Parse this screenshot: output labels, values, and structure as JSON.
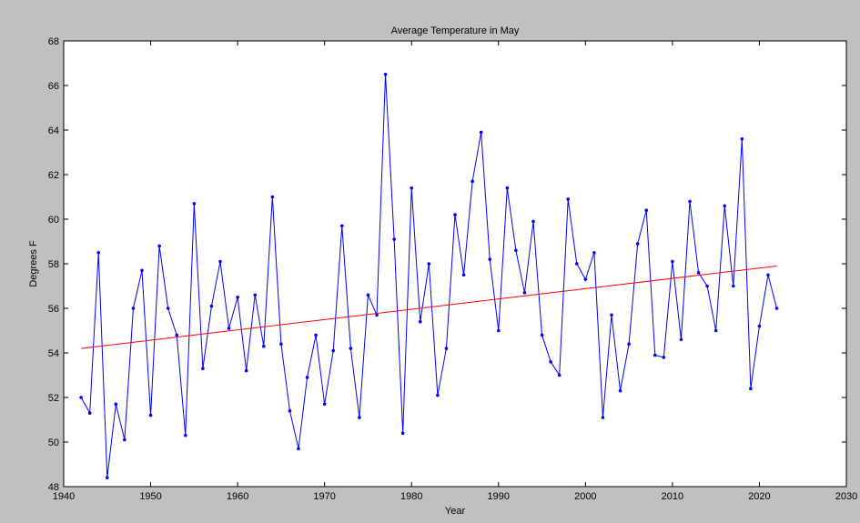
{
  "chart_data": {
    "type": "line",
    "title": "Average Temperature in May",
    "xlabel": "Year",
    "ylabel": "Degrees F",
    "xlim": [
      1940,
      2030
    ],
    "ylim": [
      48,
      68
    ],
    "xticks": [
      1940,
      1950,
      1960,
      1970,
      1980,
      1990,
      2000,
      2010,
      2020,
      2030
    ],
    "yticks": [
      48,
      50,
      52,
      54,
      56,
      58,
      60,
      62,
      64,
      66,
      68
    ],
    "grid": false,
    "legend": "none",
    "series": [
      {
        "color": "#0000ff",
        "marker": "dot",
        "x": [
          1942,
          1943,
          1944,
          1945,
          1946,
          1947,
          1948,
          1949,
          1950,
          1951,
          1952,
          1953,
          1954,
          1955,
          1956,
          1957,
          1958,
          1959,
          1960,
          1961,
          1962,
          1963,
          1964,
          1965,
          1966,
          1967,
          1968,
          1969,
          1970,
          1971,
          1972,
          1973,
          1974,
          1975,
          1976,
          1977,
          1978,
          1979,
          1980,
          1981,
          1982,
          1983,
          1984,
          1985,
          1986,
          1987,
          1988,
          1989,
          1990,
          1991,
          1992,
          1993,
          1994,
          1995,
          1996,
          1997,
          1998,
          1999,
          2000,
          2001,
          2002,
          2003,
          2004,
          2005,
          2006,
          2007,
          2008,
          2009,
          2010,
          2011,
          2012,
          2013,
          2014,
          2015,
          2016,
          2017,
          2018,
          2019,
          2020,
          2021,
          2022
        ],
        "y": [
          52.0,
          51.3,
          58.5,
          48.4,
          51.7,
          50.1,
          56.0,
          57.7,
          51.2,
          58.8,
          56.0,
          54.8,
          50.3,
          60.7,
          53.3,
          56.1,
          58.1,
          55.1,
          56.5,
          53.2,
          56.6,
          54.3,
          61.0,
          54.4,
          51.4,
          49.7,
          52.9,
          54.8,
          51.7,
          54.1,
          59.7,
          54.2,
          51.1,
          56.6,
          55.7,
          66.5,
          59.1,
          50.4,
          61.4,
          55.4,
          58.0,
          52.1,
          54.2,
          60.2,
          57.5,
          61.7,
          63.9,
          58.2,
          55.0,
          61.4,
          58.6,
          56.7,
          59.9,
          54.8,
          53.6,
          53.0,
          60.9,
          58.0,
          57.3,
          58.5,
          51.1,
          55.7,
          52.3,
          54.4,
          58.9,
          60.4,
          53.9,
          53.8,
          58.1,
          54.6,
          60.8,
          57.6,
          57.0,
          55.0,
          60.6,
          57.0,
          63.6,
          52.4,
          55.2,
          57.5,
          56.0
        ]
      },
      {
        "color": "#ff0000",
        "marker": "none",
        "x": [
          1942,
          2022
        ],
        "y": [
          54.2,
          57.9
        ]
      }
    ]
  }
}
